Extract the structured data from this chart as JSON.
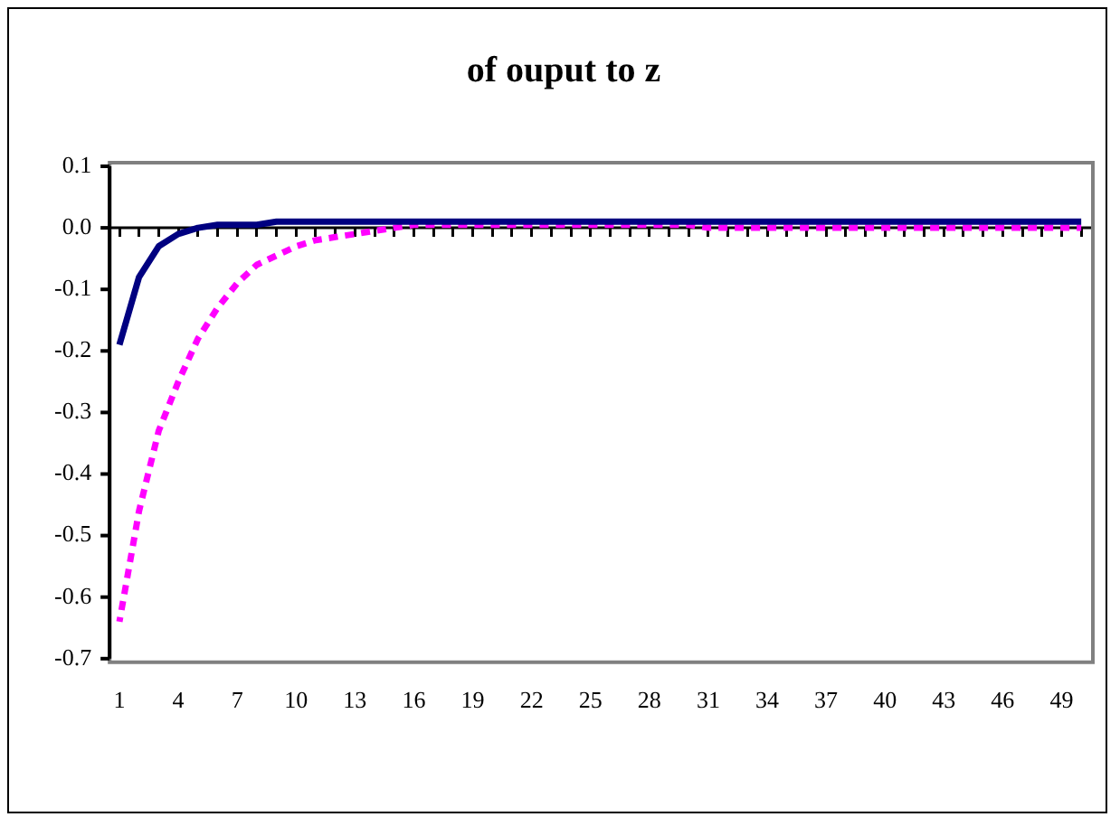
{
  "chart_data": {
    "type": "line",
    "title": "of ouput to z",
    "categories": [
      "1",
      null,
      null,
      "4",
      null,
      null,
      "7",
      null,
      null,
      "10",
      null,
      null,
      "13",
      null,
      null,
      "16",
      null,
      null,
      "19",
      null,
      null,
      "22",
      null,
      null,
      "25",
      null,
      null,
      "28",
      null,
      null,
      "31",
      null,
      null,
      "34",
      null,
      null,
      "37",
      null,
      null,
      "40",
      null,
      null,
      "43",
      null,
      null,
      "46",
      null,
      null,
      "49",
      null
    ],
    "series": [
      {
        "color": "#000080",
        "line_style": "solid",
        "values": [
          -0.19,
          -0.08,
          -0.03,
          -0.01,
          0,
          0.005,
          0.005,
          0.005,
          0.01,
          0.01,
          0.01,
          0.01,
          0.01,
          0.01,
          0.01,
          0.01,
          0.01,
          0.01,
          0.01,
          0.01,
          0.01,
          0.01,
          0.01,
          0.01,
          0.01,
          0.01,
          0.01,
          0.01,
          0.01,
          0.01,
          0.01,
          0.01,
          0.01,
          0.01,
          0.01,
          0.01,
          0.01,
          0.01,
          0.01,
          0.01,
          0.01,
          0.01,
          0.01,
          0.01,
          0.01,
          0.01,
          0.01,
          0.01,
          0.01,
          0.01
        ]
      },
      {
        "color": "#ff00ff",
        "line_style": "dotted",
        "values": [
          -0.64,
          -0.46,
          -0.33,
          -0.25,
          -0.18,
          -0.13,
          -0.09,
          -0.06,
          -0.045,
          -0.03,
          -0.02,
          -0.015,
          -0.01,
          -0.005,
          0,
          0.005,
          0.005,
          0.005,
          0.005,
          0.005,
          0.005,
          0.005,
          0.005,
          0.005,
          0.005,
          0.005,
          0.005,
          0.005,
          0.005,
          0.005,
          0,
          0,
          0,
          0,
          0,
          0,
          0,
          0,
          0,
          0,
          0,
          0,
          0,
          0,
          0,
          0,
          0,
          0,
          0,
          0
        ]
      }
    ],
    "ylim": [
      -0.7,
      0.1
    ],
    "yticks": [
      0.1,
      {
        "value": 0,
        "label": "0.0"
      },
      -0.1,
      -0.2,
      -0.3,
      -0.4,
      -0.5,
      -0.6,
      -0.7
    ],
    "ref_lines": [
      {
        "axis": "y",
        "value": 0,
        "color": "#000000"
      }
    ],
    "grid": false,
    "legend": false,
    "marker": "none"
  }
}
